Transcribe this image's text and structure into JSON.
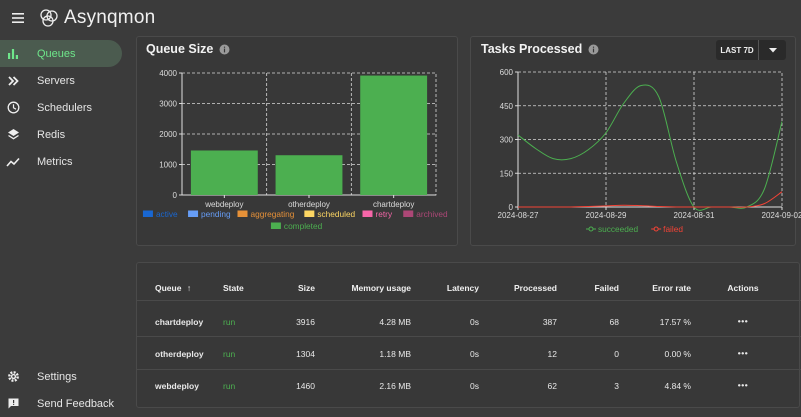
{
  "app": {
    "brand": "Asynqmon"
  },
  "sidebar": {
    "items": [
      {
        "label": "Queues",
        "icon": "bar-chart-icon",
        "active": true
      },
      {
        "label": "Servers",
        "icon": "double-chevron-icon"
      },
      {
        "label": "Schedulers",
        "icon": "clock-icon"
      },
      {
        "label": "Redis",
        "icon": "layers-icon"
      },
      {
        "label": "Metrics",
        "icon": "trend-line-icon"
      }
    ],
    "bottom": [
      {
        "label": "Settings",
        "icon": "gear-icon"
      },
      {
        "label": "Send Feedback",
        "icon": "feedback-icon"
      }
    ]
  },
  "queue_size": {
    "title": "Queue Size"
  },
  "tasks_processed": {
    "title": "Tasks Processed",
    "range_label": "LAST 7D"
  },
  "colors": {
    "active": "#1967d2",
    "pending": "#669df6",
    "aggregating": "#e69138",
    "scheduled": "#fdd663",
    "retry": "#f666a9",
    "archived": "#ac4776",
    "completed": "#4caf50",
    "succeeded": "#4caf50",
    "failed": "#f44336",
    "state_run": "#4caf50"
  },
  "chart_data": [
    {
      "type": "bar",
      "categories": [
        "webdeploy",
        "otherdeploy",
        "chartdeploy"
      ],
      "series": [
        {
          "name": "active",
          "values": [
            0,
            0,
            0
          ]
        },
        {
          "name": "pending",
          "values": [
            0,
            0,
            0
          ]
        },
        {
          "name": "aggregating",
          "values": [
            0,
            0,
            0
          ]
        },
        {
          "name": "scheduled",
          "values": [
            0,
            0,
            0
          ]
        },
        {
          "name": "retry",
          "values": [
            0,
            0,
            0
          ]
        },
        {
          "name": "archived",
          "values": [
            0,
            0,
            0
          ]
        },
        {
          "name": "completed",
          "values": [
            1460,
            1304,
            3916
          ]
        }
      ],
      "yticks": [
        "0",
        "1000",
        "2000",
        "3000",
        "4000"
      ],
      "ylim": [
        0,
        4000
      ],
      "grid": true,
      "legend": "bottom"
    },
    {
      "type": "line",
      "xticks": [
        "2024-08-27",
        "2024-08-29",
        "2024-08-31",
        "2024-09-02"
      ],
      "yticks": [
        "0",
        "150",
        "300",
        "450",
        "600"
      ],
      "ylim": [
        0,
        600
      ],
      "x": [
        0,
        0.5,
        1,
        1.5,
        2,
        2.5,
        3,
        3.5,
        4,
        4.5,
        5,
        5.5,
        6,
        6.5,
        7,
        7.5
      ],
      "series": [
        {
          "name": "succeeded",
          "values": [
            320,
            260,
            215,
            215,
            255,
            330,
            460,
            540,
            490,
            200,
            0,
            0,
            0,
            0,
            80,
            380
          ]
        },
        {
          "name": "failed",
          "values": [
            0,
            0,
            0,
            0,
            2,
            5,
            8,
            6,
            2,
            0,
            0,
            0,
            0,
            0,
            15,
            68
          ]
        }
      ],
      "grid": true,
      "legend": "bottom"
    }
  ],
  "table": {
    "headers": {
      "queue": "Queue",
      "sort": "↑",
      "state": "State",
      "size": "Size",
      "memory": "Memory usage",
      "latency": "Latency",
      "processed": "Processed",
      "failed": "Failed",
      "error_rate": "Error rate",
      "actions": "Actions"
    },
    "rows": [
      {
        "queue": "chartdeploy",
        "state": "run",
        "size": "3916",
        "memory": "4.28 MB",
        "latency": "0s",
        "processed": "387",
        "failed": "68",
        "error_rate": "17.57 %",
        "actions": "•••"
      },
      {
        "queue": "otherdeploy",
        "state": "run",
        "size": "1304",
        "memory": "1.18 MB",
        "latency": "0s",
        "processed": "12",
        "failed": "0",
        "error_rate": "0.00 %",
        "actions": "•••"
      },
      {
        "queue": "webdeploy",
        "state": "run",
        "size": "1460",
        "memory": "2.16 MB",
        "latency": "0s",
        "processed": "62",
        "failed": "3",
        "error_rate": "4.84 %",
        "actions": "•••"
      }
    ]
  }
}
